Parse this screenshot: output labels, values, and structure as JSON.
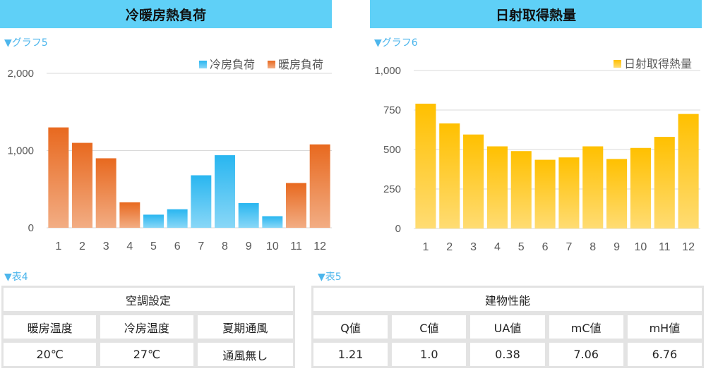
{
  "left_panel": {
    "title": "冷暖房熱負荷",
    "tag": "▼グラフ5"
  },
  "right_panel": {
    "title": "日射取得熱量",
    "tag": "▼グラフ6"
  },
  "table4": {
    "tag": "▼表4",
    "title": "空調設定",
    "headers": [
      "暖房温度",
      "冷房温度",
      "夏期通風"
    ],
    "values": [
      "20℃",
      "27℃",
      "通風無し"
    ]
  },
  "table5": {
    "tag": "▼表5",
    "title": "建物性能",
    "headers": [
      "Q値",
      "C値",
      "UA値",
      "mC値",
      "mH値"
    ],
    "values": [
      "1.21",
      "1.0",
      "0.38",
      "7.06",
      "6.76"
    ]
  },
  "chart_data": [
    {
      "type": "bar",
      "categories": [
        "1",
        "2",
        "3",
        "4",
        "5",
        "6",
        "7",
        "8",
        "9",
        "10",
        "11",
        "12"
      ],
      "series": [
        {
          "name": "冷房負荷",
          "color": "#29b6f0",
          "values": [
            0,
            0,
            0,
            0,
            170,
            240,
            680,
            940,
            320,
            150,
            0,
            0
          ]
        },
        {
          "name": "暖房負荷",
          "color": "#e8691f",
          "values": [
            1300,
            1100,
            900,
            330,
            0,
            0,
            0,
            0,
            0,
            0,
            580,
            1080
          ]
        }
      ],
      "ylim": [
        0,
        2000
      ],
      "yticks": [
        0,
        1000,
        2000
      ],
      "ytick_labels": [
        "0",
        "1,000",
        "2,000"
      ],
      "legend": "top-right",
      "grid": true
    },
    {
      "type": "bar",
      "categories": [
        "1",
        "2",
        "3",
        "4",
        "5",
        "6",
        "7",
        "8",
        "9",
        "10",
        "11",
        "12"
      ],
      "series": [
        {
          "name": "日射取得熱量",
          "color": "#ffc000",
          "values": [
            790,
            665,
            595,
            520,
            490,
            435,
            450,
            520,
            440,
            510,
            580,
            725
          ]
        }
      ],
      "ylim": [
        0,
        1000
      ],
      "yticks": [
        0,
        250,
        500,
        750,
        1000
      ],
      "ytick_labels": [
        "0",
        "250",
        "500",
        "750",
        "1,000"
      ],
      "legend": "top-right",
      "grid": true
    }
  ]
}
